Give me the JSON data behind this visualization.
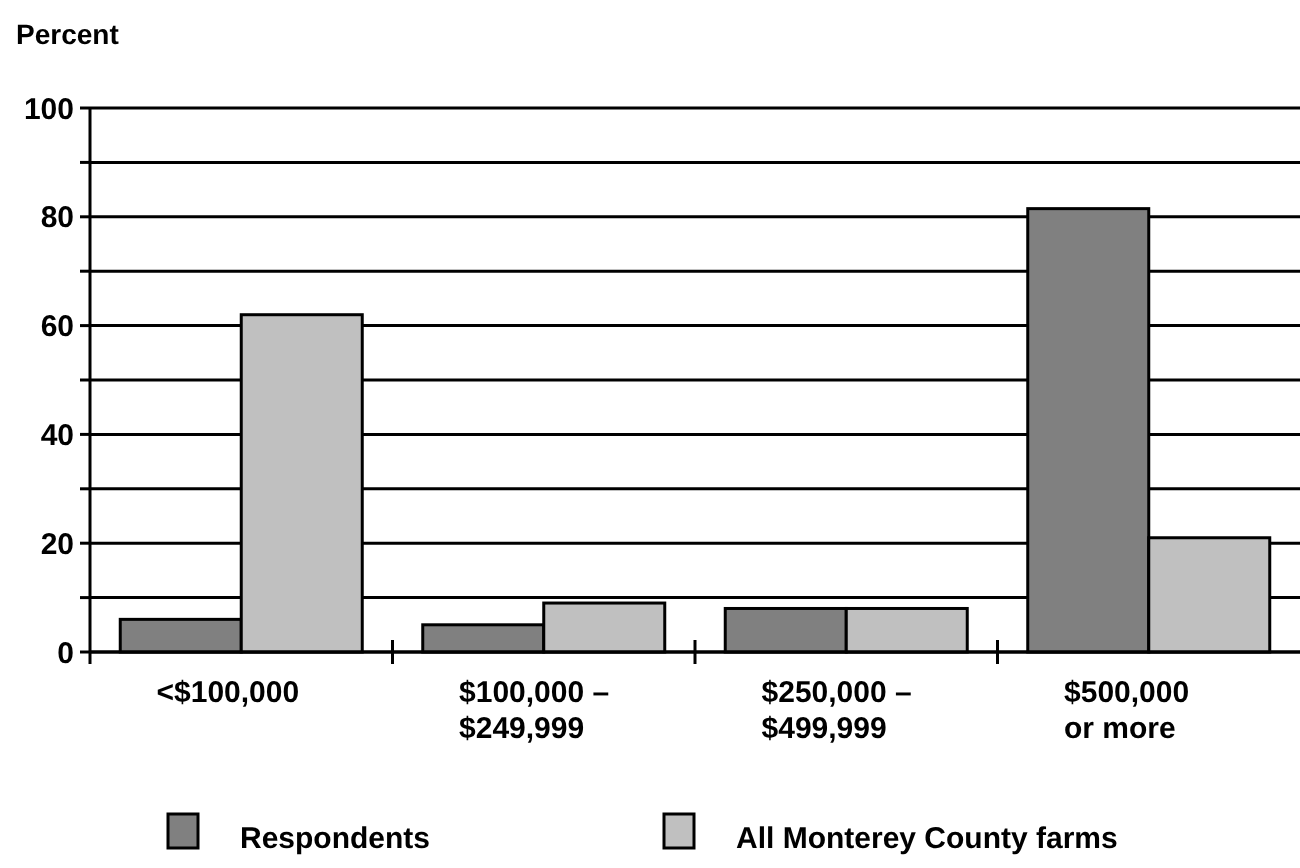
{
  "chart_data": {
    "type": "bar",
    "ylabel": "Percent",
    "categories": [
      "<$100,000",
      "$100,000 –\n$249,999",
      "$250,000 –\n$499,999",
      "$500,000\nor more"
    ],
    "series": [
      {
        "name": "Respondents",
        "color": "#808080",
        "values": [
          6,
          5,
          8,
          81.5
        ]
      },
      {
        "name": "All Monterey County farms",
        "color": "#c0c0c0",
        "values": [
          62,
          9,
          8,
          21
        ]
      }
    ],
    "ylim": [
      0,
      100
    ],
    "yticks": [
      0,
      {
        "value": 10,
        "label": null
      },
      20,
      {
        "value": 30,
        "label": null
      },
      40,
      {
        "value": 50,
        "label": null
      },
      60,
      {
        "value": 70,
        "label": null
      },
      80,
      {
        "value": 90,
        "label": null
      },
      100
    ],
    "grid": true,
    "legend": "bottom"
  }
}
